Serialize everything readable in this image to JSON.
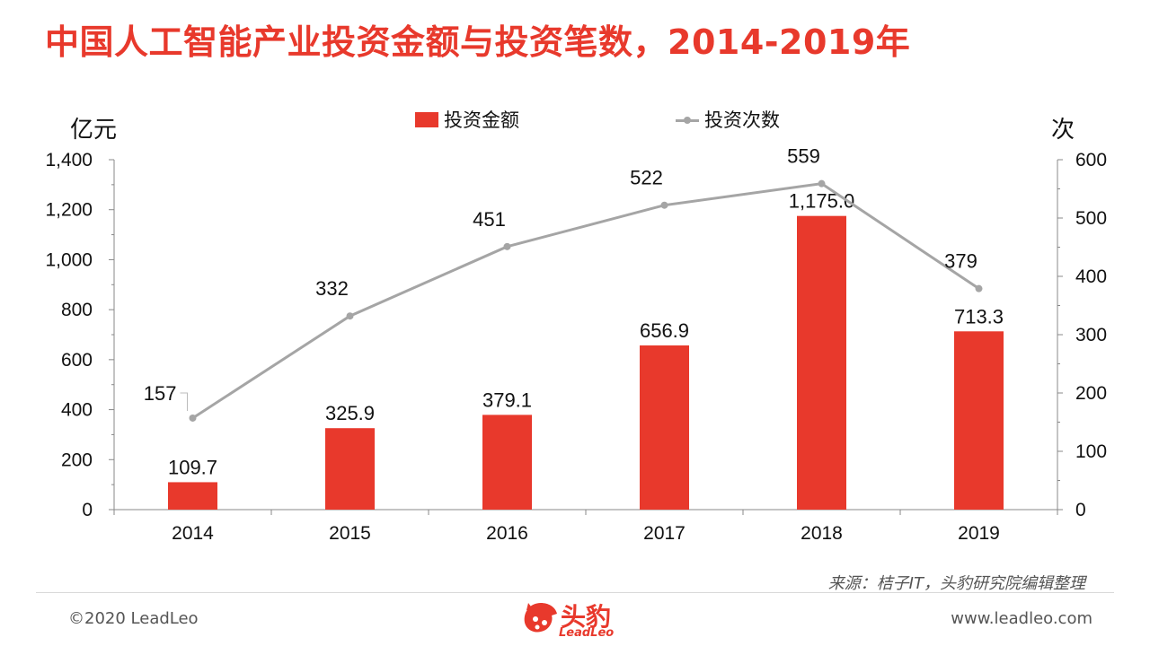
{
  "title": "中国人工智能产业投资金额与投资笔数，2014-2019年",
  "left_unit": "亿元",
  "right_unit": "次",
  "legend": {
    "bar_label": "投资金额",
    "line_label": "投资次数"
  },
  "source": "来源：桔子IT，头豹研究院编辑整理",
  "footer": {
    "copyright": "©2020 LeadLeo",
    "website": "www.leadleo.com"
  },
  "logo": {
    "text": "头豹",
    "sub": "LeadLeo"
  },
  "colors": {
    "bar": "#e8392c",
    "line": "#a5a5a5",
    "title": "#e8392c"
  },
  "chart_data": {
    "type": "bar",
    "title": "中国人工智能产业投资金额与投资笔数，2014-2019年",
    "categories": [
      "2014",
      "2015",
      "2016",
      "2017",
      "2018",
      "2019"
    ],
    "series": [
      {
        "name": "投资金额",
        "type": "bar",
        "axis": "left",
        "values": [
          109.7,
          325.9,
          379.1,
          656.9,
          1175.0,
          713.3
        ],
        "labels": [
          "109.7",
          "325.9",
          "379.1",
          "656.9",
          "1,175.0",
          "713.3"
        ]
      },
      {
        "name": "投资次数",
        "type": "line",
        "axis": "right",
        "values": [
          157,
          332,
          451,
          522,
          559,
          379
        ],
        "labels": [
          "157",
          "332",
          "451",
          "522",
          "559",
          "379"
        ]
      }
    ],
    "ylabel": "亿元",
    "ylabel_right": "次",
    "ylim": [
      0,
      1400
    ],
    "ylim_right": [
      0,
      600
    ],
    "yticks": [
      "0",
      "200",
      "400",
      "600",
      "800",
      "1,000",
      "1,200",
      "1,400"
    ],
    "yticks_right": [
      "0",
      "100",
      "200",
      "300",
      "400",
      "500",
      "600"
    ],
    "grid": false,
    "legend_position": "top-center"
  }
}
